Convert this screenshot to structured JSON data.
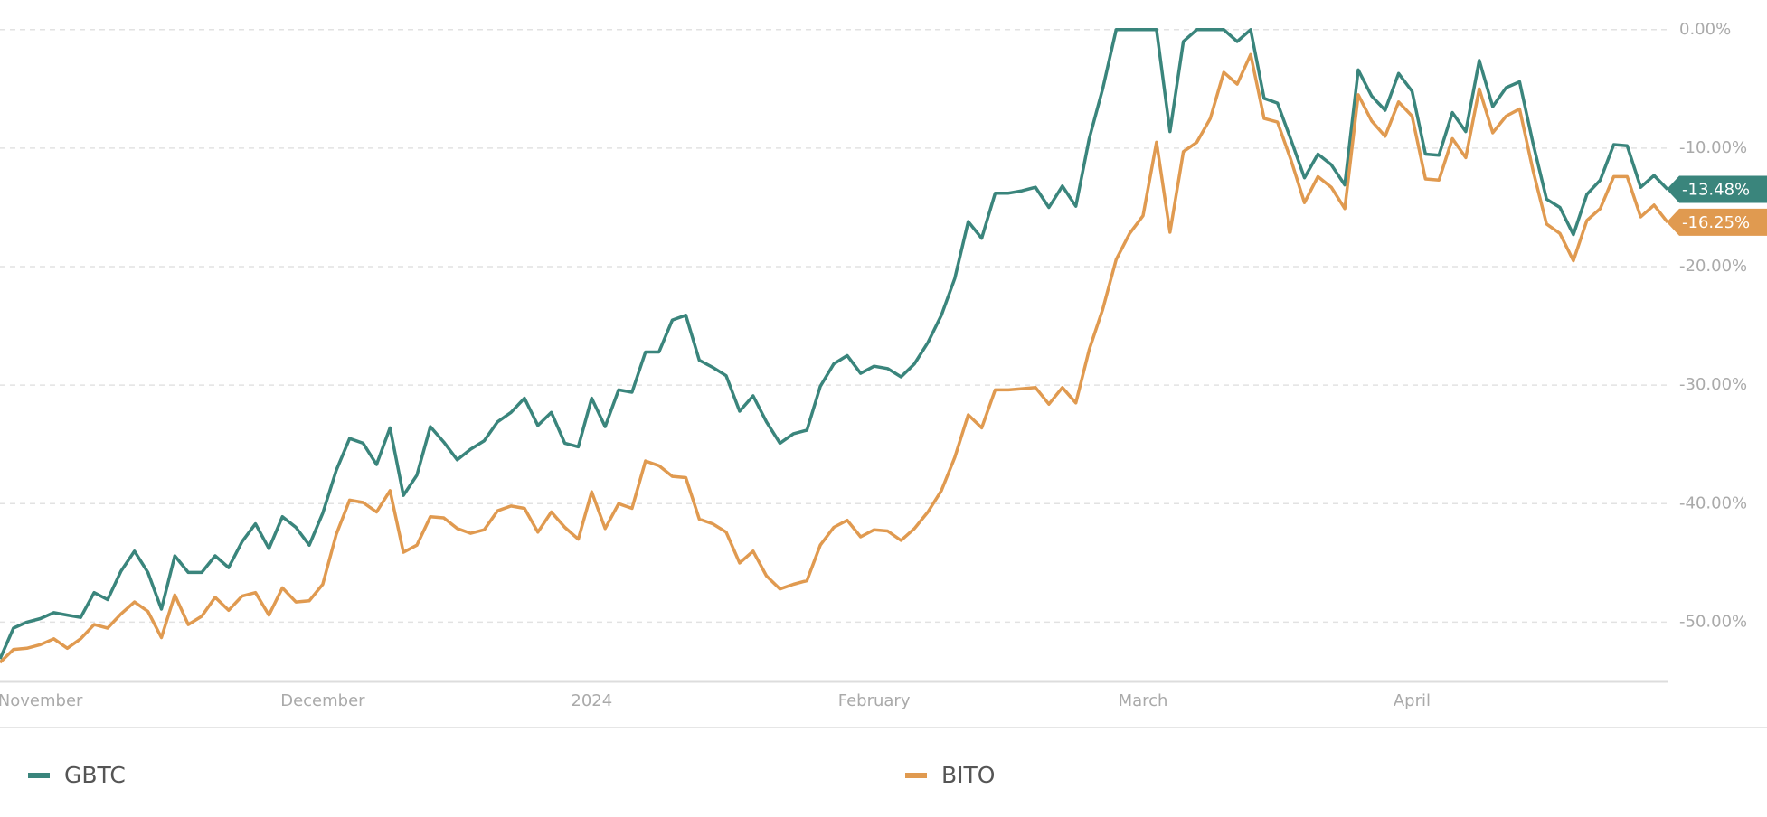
{
  "chart_data": {
    "type": "line",
    "categories": [
      null,
      null,
      null,
      "November",
      null,
      null,
      null,
      null,
      null,
      null,
      null,
      null,
      null,
      null,
      null,
      null,
      null,
      null,
      null,
      null,
      null,
      null,
      null,
      null,
      "December",
      null,
      null,
      null,
      null,
      null,
      null,
      null,
      null,
      null,
      null,
      null,
      null,
      null,
      null,
      null,
      null,
      null,
      null,
      null,
      "2024",
      null,
      null,
      null,
      null,
      null,
      null,
      null,
      null,
      null,
      null,
      null,
      null,
      null,
      null,
      null,
      null,
      null,
      null,
      null,
      null,
      "February",
      null,
      null,
      null,
      null,
      null,
      null,
      null,
      null,
      null,
      null,
      null,
      null,
      null,
      null,
      null,
      null,
      null,
      null,
      null,
      "March",
      null,
      null,
      null,
      null,
      null,
      null,
      null,
      null,
      null,
      null,
      null,
      null,
      null,
      null,
      null,
      null,
      null,
      null,
      null,
      "April",
      null,
      null,
      null,
      null,
      null,
      null,
      null,
      null,
      null,
      null,
      null,
      null,
      null,
      null,
      null,
      null,
      null,
      null,
      null
    ],
    "series": [
      {
        "name": "GBTC",
        "color": "#3a857c",
        "values": [
          -53.1,
          -50.5,
          -50,
          -49.7,
          -49.2,
          -49.4,
          -49.6,
          -47.5,
          -48.1,
          -45.7,
          -44,
          -45.8,
          -48.9,
          -44.4,
          -45.8,
          -45.8,
          -44.4,
          -45.4,
          -43.2,
          -41.7,
          -43.8,
          -41.1,
          -42,
          -43.5,
          -40.8,
          -37.2,
          -34.5,
          -34.9,
          -36.7,
          -33.6,
          -39.3,
          -37.6,
          -33.5,
          -34.8,
          -36.3,
          -35.4,
          -34.7,
          -33.1,
          -32.3,
          -31.1,
          -33.4,
          -32.3,
          -34.9,
          -35.2,
          -31.1,
          -33.5,
          -30.4,
          -30.6,
          -27.2,
          -27.2,
          -24.5,
          -24.1,
          -27.9,
          -28.5,
          -29.2,
          -32.2,
          -30.9,
          -33.1,
          -34.9,
          -34.1,
          -33.8,
          -30.1,
          -28.2,
          -27.5,
          -29,
          -28.4,
          -28.6,
          -29.3,
          -28.2,
          -26.4,
          -24.1,
          -21,
          -16.2,
          -17.6,
          -13.8,
          -13.8,
          -13.6,
          -13.3,
          -15,
          -13.2,
          -14.9,
          -9.2,
          -5,
          0,
          0,
          0,
          0,
          -8.6,
          -1,
          0,
          0,
          0,
          -1,
          0,
          -5.8,
          -6.2,
          -9.3,
          -12.5,
          -10.5,
          -11.4,
          -13.1,
          -3.4,
          -5.6,
          -6.8,
          -3.7,
          -5.2,
          -10.5,
          -10.6,
          -7,
          -8.6,
          -2.6,
          -6.5,
          -4.9,
          -4.4,
          -9.6,
          -14.3,
          -15,
          -17.3,
          -13.9,
          -12.7,
          -9.7,
          -9.8,
          -13.3,
          -12.3,
          -13.48
        ],
        "value_labels": [
          null,
          null,
          null,
          null,
          null,
          null,
          null,
          null,
          null,
          null,
          null,
          null,
          null,
          null,
          null,
          null,
          null,
          null,
          null,
          null,
          null,
          null,
          null,
          null,
          null,
          null,
          null,
          null,
          null,
          null,
          null,
          null,
          null,
          null,
          null,
          null,
          null,
          null,
          null,
          null,
          null,
          null,
          null,
          null,
          null,
          null,
          null,
          null,
          null,
          null,
          null,
          null,
          null,
          null,
          null,
          null,
          null,
          null,
          null,
          null,
          null,
          null,
          null,
          null,
          null,
          null,
          null,
          null,
          null,
          null,
          null,
          null,
          null,
          null,
          null,
          null,
          null,
          null,
          null,
          null,
          null,
          null,
          null,
          null,
          null,
          null,
          null,
          null,
          null,
          null,
          null,
          null,
          null,
          null,
          null,
          null,
          null,
          null,
          null,
          null,
          null,
          null,
          null,
          null,
          null,
          null,
          null,
          null,
          null,
          null,
          null,
          null,
          null,
          null,
          null,
          null,
          null,
          null,
          null,
          null,
          null,
          null,
          null,
          null,
          "-13.48%"
        ]
      },
      {
        "name": "BITO",
        "color": "#e09a50",
        "values": [
          -53.4,
          -52.3,
          -52.2,
          -51.9,
          -51.4,
          -52.2,
          -51.4,
          -50.2,
          -50.5,
          -49.3,
          -48.3,
          -49.1,
          -51.3,
          -47.7,
          -50.2,
          -49.5,
          -47.9,
          -49,
          -47.8,
          -47.5,
          -49.4,
          -47.1,
          -48.3,
          -48.2,
          -46.8,
          -42.6,
          -39.7,
          -39.9,
          -40.7,
          -38.9,
          -44.1,
          -43.5,
          -41.1,
          -41.2,
          -42.1,
          -42.5,
          -42.2,
          -40.6,
          -40.2,
          -40.4,
          -42.4,
          -40.7,
          -42,
          -43,
          -39,
          -42.1,
          -40,
          -40.4,
          -36.4,
          -36.8,
          -37.7,
          -37.8,
          -41.3,
          -41.7,
          -42.4,
          -45,
          -44,
          -46.1,
          -47.2,
          -46.8,
          -46.5,
          -43.5,
          -42,
          -41.4,
          -42.8,
          -42.2,
          -42.3,
          -43.1,
          -42.1,
          -40.7,
          -38.9,
          -36.1,
          -32.5,
          -33.6,
          -30.4,
          -30.4,
          -30.3,
          -30.2,
          -31.6,
          -30.2,
          -31.5,
          -27,
          -23.6,
          -19.4,
          -17.2,
          -15.7,
          -9.5,
          -17.1,
          -10.3,
          -9.5,
          -7.5,
          -3.6,
          -4.6,
          -2.1,
          -7.5,
          -7.8,
          -11,
          -14.6,
          -12.4,
          -13.3,
          -15.1,
          -5.5,
          -7.7,
          -9,
          -6.1,
          -7.3,
          -12.6,
          -12.7,
          -9.2,
          -10.8,
          -5,
          -8.7,
          -7.3,
          -6.7,
          -11.9,
          -16.4,
          -17.2,
          -19.5,
          -16.1,
          -15.1,
          -12.4,
          -12.4,
          -15.8,
          -14.8,
          -16.25
        ],
        "value_labels": [
          null,
          null,
          null,
          null,
          null,
          null,
          null,
          null,
          null,
          null,
          null,
          null,
          null,
          null,
          null,
          null,
          null,
          null,
          null,
          null,
          null,
          null,
          null,
          null,
          null,
          null,
          null,
          null,
          null,
          null,
          null,
          null,
          null,
          null,
          null,
          null,
          null,
          null,
          null,
          null,
          null,
          null,
          null,
          null,
          null,
          null,
          null,
          null,
          null,
          null,
          null,
          null,
          null,
          null,
          null,
          null,
          null,
          null,
          null,
          null,
          null,
          null,
          null,
          null,
          null,
          null,
          null,
          null,
          null,
          null,
          null,
          null,
          null,
          null,
          null,
          null,
          null,
          null,
          null,
          null,
          null,
          null,
          null,
          null,
          null,
          null,
          null,
          null,
          null,
          null,
          null,
          null,
          null,
          null,
          null,
          null,
          null,
          null,
          null,
          null,
          null,
          null,
          null,
          null,
          null,
          null,
          null,
          null,
          null,
          null,
          null,
          null,
          null,
          null,
          null,
          null,
          null,
          null,
          null,
          null,
          null,
          null,
          null,
          null,
          "-16.25%"
        ]
      }
    ],
    "ylim": [
      -55,
      2.5
    ],
    "yticks": [
      {
        "value": 0,
        "label": "0.00%"
      },
      {
        "value": -10,
        "label": "-10.00%"
      },
      {
        "value": -20,
        "label": "-20.00%"
      },
      {
        "value": -30,
        "label": "-30.00%"
      },
      {
        "value": -40,
        "label": "-40.00%"
      },
      {
        "value": -50,
        "label": "-50.00%"
      }
    ],
    "grid": true
  }
}
